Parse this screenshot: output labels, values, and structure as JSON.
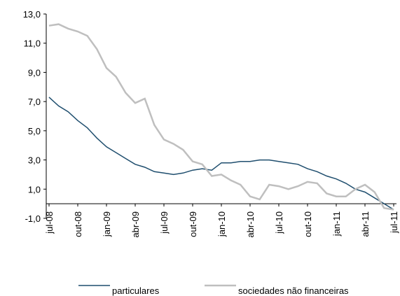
{
  "chart_data": {
    "type": "line",
    "categories": [
      "jul-08",
      null,
      null,
      "out-08",
      null,
      null,
      "jan-09",
      null,
      null,
      "abr-09",
      null,
      null,
      "jul-09",
      null,
      null,
      "out-09",
      null,
      null,
      "jan-10",
      null,
      null,
      "abr-10",
      null,
      null,
      "jul-10",
      null,
      null,
      "out-10",
      null,
      null,
      "jan-11",
      null,
      null,
      "abr-11",
      null,
      null,
      "jul-11"
    ],
    "series": [
      {
        "name": "particulares",
        "color": "#1f4e6e",
        "values": [
          7.3,
          6.7,
          6.3,
          5.7,
          5.2,
          4.5,
          3.9,
          3.5,
          3.1,
          2.7,
          2.5,
          2.2,
          2.1,
          2.0,
          2.1,
          2.3,
          2.4,
          2.3,
          2.8,
          2.8,
          2.9,
          2.9,
          3.0,
          3.0,
          2.9,
          2.8,
          2.7,
          2.4,
          2.2,
          1.9,
          1.7,
          1.4,
          1.0,
          0.8,
          0.4,
          0.0,
          -0.4
        ]
      },
      {
        "name": "sociedades não financeiras",
        "color": "#bfbfbf",
        "values": [
          12.2,
          12.3,
          12.0,
          11.8,
          11.5,
          10.6,
          9.3,
          8.7,
          7.6,
          6.9,
          7.2,
          5.4,
          4.4,
          4.1,
          3.7,
          2.9,
          2.7,
          1.9,
          2.0,
          1.6,
          1.3,
          0.5,
          0.3,
          1.3,
          1.2,
          1.0,
          1.2,
          1.5,
          1.4,
          0.7,
          0.5,
          0.5,
          1.0,
          1.3,
          0.8,
          -0.3,
          -0.4
        ]
      }
    ],
    "ylim": [
      -1,
      13
    ],
    "yticks": [
      {
        "value": -1,
        "label": "-1,0"
      },
      {
        "value": 1,
        "label": "1,0"
      },
      {
        "value": 3,
        "label": "3,0"
      },
      {
        "value": 5,
        "label": "5,0"
      },
      {
        "value": 7,
        "label": "7,0"
      },
      {
        "value": 9,
        "label": "9,0"
      },
      {
        "value": 11,
        "label": "11,0"
      },
      {
        "value": 13,
        "label": "13,0"
      }
    ],
    "legend": "bottom"
  }
}
